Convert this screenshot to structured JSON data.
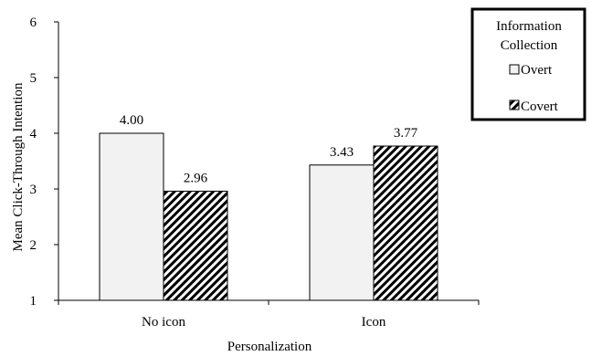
{
  "chart_data": {
    "type": "bar",
    "categories": [
      "No icon",
      "Icon"
    ],
    "series": [
      {
        "name": "Overt",
        "values": [
          4.0,
          3.43
        ],
        "labels": [
          "4.00",
          "3.43"
        ],
        "color": "#f2f2f2",
        "pattern": "solid"
      },
      {
        "name": "Covert",
        "values": [
          2.96,
          3.77
        ],
        "labels": [
          "2.96",
          "3.77"
        ],
        "color": "#000000",
        "pattern": "diagonal-hatch"
      }
    ],
    "xlabel": "Personalization",
    "ylabel": "Mean Click-Through Intention",
    "ylim": [
      1,
      6
    ],
    "yticks": [
      "1",
      "2",
      "3",
      "4",
      "5",
      "6"
    ],
    "grid": false,
    "legend": {
      "title_lines": [
        "Information",
        "Collection"
      ],
      "position": "top-right",
      "entries": [
        "Overt",
        "Covert"
      ]
    }
  }
}
